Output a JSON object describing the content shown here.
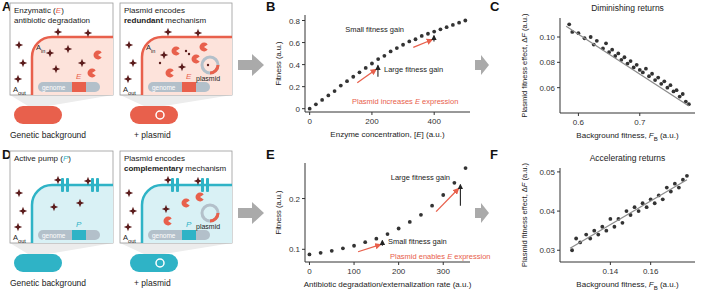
{
  "chart_data": [
    {
      "panel": "B",
      "type": "scatter",
      "marker": "circle",
      "color": "#333333",
      "x": [
        0,
        20,
        40,
        60,
        80,
        100,
        120,
        140,
        160,
        180,
        200,
        220,
        240,
        260,
        280,
        300,
        320,
        340,
        360,
        380,
        400,
        420,
        440,
        460,
        480,
        500
      ],
      "values": [
        0,
        0.04,
        0.08,
        0.12,
        0.16,
        0.21,
        0.25,
        0.29,
        0.33,
        0.37,
        0.41,
        0.45,
        0.48,
        0.52,
        0.55,
        0.58,
        0.61,
        0.63,
        0.66,
        0.68,
        0.7,
        0.72,
        0.74,
        0.76,
        0.78,
        0.8
      ],
      "xlim": [
        -15,
        515
      ],
      "ylim": [
        -0.03,
        0.85
      ],
      "xticks": [
        0,
        200,
        400
      ],
      "yticks": [
        0,
        0.2,
        0.4,
        0.6,
        0.8
      ],
      "xlabel": [
        {
          "text": "Enzyme concentration, ["
        },
        {
          "text": "E",
          "italic": true
        },
        {
          "text": "] (a.u.)"
        }
      ],
      "ylabel": "Fitness (a.u.)",
      "annotations": [
        {
          "text": [
            {
              "text": "Plasmid increases "
            },
            {
              "text": "E",
              "italic": true
            },
            {
              "text": " expression"
            }
          ],
          "color": "#e8604c"
        },
        {
          "text": "Large fitness gain",
          "color": "#222222"
        },
        {
          "text": "Small fitness gain",
          "color": "#222222"
        }
      ]
    },
    {
      "panel": "C",
      "type": "scatter",
      "title": "Diminishing returns",
      "marker": "circle",
      "color": "#333333",
      "x": [
        0.585,
        0.59,
        0.6,
        0.61,
        0.62,
        0.625,
        0.63,
        0.64,
        0.645,
        0.65,
        0.655,
        0.66,
        0.665,
        0.67,
        0.675,
        0.68,
        0.685,
        0.69,
        0.695,
        0.7,
        0.705,
        0.71,
        0.715,
        0.72,
        0.725,
        0.73,
        0.735,
        0.74,
        0.745,
        0.75,
        0.755,
        0.76,
        0.765,
        0.77,
        0.775,
        0.78
      ],
      "values": [
        0.11,
        0.104,
        0.103,
        0.099,
        0.1,
        0.094,
        0.097,
        0.091,
        0.095,
        0.088,
        0.09,
        0.085,
        0.087,
        0.082,
        0.084,
        0.079,
        0.081,
        0.076,
        0.078,
        0.074,
        0.072,
        0.075,
        0.069,
        0.071,
        0.066,
        0.068,
        0.063,
        0.065,
        0.06,
        0.062,
        0.057,
        0.058,
        0.053,
        0.055,
        0.049,
        0.047
      ],
      "fit": {
        "type": "line",
        "x": [
          0.58,
          0.78
        ],
        "values": [
          0.1085,
          0.0455
        ],
        "color": "#8c8c8c",
        "line_style": "solid"
      },
      "xlim": [
        0.57,
        0.79
      ],
      "ylim": [
        0.04,
        0.115
      ],
      "xticks": [
        0.6,
        0.7
      ],
      "yticks": [
        0.06,
        0.08,
        {
          "value": 0.1,
          "label": "0.10"
        }
      ],
      "xlabel": [
        {
          "text": "Background fitness, "
        },
        {
          "text": "F",
          "italic": true
        },
        {
          "text": "B",
          "sub": true
        },
        {
          "text": " (a.u.)"
        }
      ],
      "ylabel": [
        {
          "text": "Plasmid fitness effect, Δ"
        },
        {
          "text": "F",
          "italic": true
        },
        {
          "text": " (a.u.)"
        }
      ]
    },
    {
      "panel": "E",
      "type": "scatter",
      "marker": "circle",
      "color": "#333333",
      "x": [
        0,
        25,
        50,
        75,
        100,
        125,
        150,
        175,
        200,
        225,
        250,
        275,
        300,
        325,
        350
      ],
      "values": [
        0.09,
        0.093,
        0.097,
        0.102,
        0.107,
        0.114,
        0.121,
        0.13,
        0.141,
        0.154,
        0.168,
        0.186,
        0.207,
        0.231,
        0.26
      ],
      "xlim": [
        -10,
        360
      ],
      "ylim": [
        0.075,
        0.27
      ],
      "xticks": [
        0,
        100,
        200,
        300
      ],
      "yticks": [
        0.1,
        0.2
      ],
      "xlabel": "Antibiotic degradation/externalization rate (a.u.)",
      "ylabel": "Fitness (a.u.)",
      "annotations": [
        {
          "text": "Small fitness gain",
          "color": "#222222"
        },
        {
          "text": "Large fitness gain",
          "color": "#222222"
        },
        {
          "text": [
            {
              "text": "Plasmid enables "
            },
            {
              "text": "E",
              "italic": true
            },
            {
              "text": " expression"
            }
          ],
          "color": "#e8604c"
        }
      ]
    },
    {
      "panel": "F",
      "type": "scatter",
      "title": "Accelerating returns",
      "marker": "circle",
      "color": "#333333",
      "x": [
        0.121,
        0.123,
        0.125,
        0.128,
        0.13,
        0.132,
        0.134,
        0.136,
        0.138,
        0.14,
        0.142,
        0.144,
        0.146,
        0.148,
        0.15,
        0.152,
        0.154,
        0.156,
        0.158,
        0.16,
        0.162,
        0.164,
        0.166,
        0.168,
        0.17,
        0.172,
        0.174,
        0.176,
        0.178
      ],
      "values": [
        0.03,
        0.033,
        0.032,
        0.034,
        0.033,
        0.035,
        0.034,
        0.036,
        0.035,
        0.038,
        0.036,
        0.038,
        0.037,
        0.04,
        0.039,
        0.041,
        0.04,
        0.042,
        0.041,
        0.043,
        0.042,
        0.044,
        0.043,
        0.046,
        0.045,
        0.047,
        0.046,
        0.048,
        0.049
      ],
      "fit": {
        "type": "line",
        "x": [
          0.12,
          0.178
        ],
        "values": [
          0.0305,
          0.048
        ],
        "color": "#8c8c8c",
        "line_style": "solid"
      },
      "xlim": [
        0.115,
        0.182
      ],
      "ylim": [
        0.027,
        0.051
      ],
      "xticks": [
        0.14,
        0.16
      ],
      "yticks": [
        0.03,
        0.04,
        0.05
      ],
      "xlabel": [
        {
          "text": "Background fitness, "
        },
        {
          "text": "F",
          "italic": true
        },
        {
          "text": "B",
          "sub": true
        },
        {
          "text": " (a.u.)"
        }
      ],
      "ylabel": [
        {
          "text": "Plasmid fitness effect, Δ"
        },
        {
          "text": "F",
          "italic": true
        },
        {
          "text": " (a.u.)"
        }
      ]
    }
  ],
  "diagrams": [
    {
      "panel": "A",
      "mechanism": "enzyme",
      "color": "#e8604c",
      "fill": "#fde3db",
      "left_title": [
        [
          {
            "text": "Enzymatic ("
          },
          {
            "text": "E",
            "italic": true,
            "color": "#e8604c"
          },
          {
            "text": ")"
          }
        ],
        [
          {
            "text": "antibiotic degradation"
          }
        ]
      ],
      "right_title": [
        [
          {
            "text": "Plasmid encodes"
          }
        ],
        [
          {
            "text": "redundant",
            "bold": true
          },
          {
            "text": " mechanism"
          }
        ]
      ],
      "a_out": [
        {
          "text": "A"
        },
        {
          "text": "out",
          "sub": true
        }
      ],
      "a_in": [
        {
          "text": "A"
        },
        {
          "text": "in",
          "sub": true
        }
      ],
      "genome": "genome",
      "protein": [
        {
          "text": "E",
          "italic": true
        }
      ],
      "plasmid": "plasmid",
      "background": "Genetic background",
      "plus": "+ plasmid"
    },
    {
      "panel": "D",
      "mechanism": "pump",
      "color": "#2fb3c6",
      "fill": "#d9f1f5",
      "left_title": [
        [
          {
            "text": "Active pump ("
          },
          {
            "text": "P",
            "italic": true,
            "color": "#2fb3c6"
          },
          {
            "text": ")"
          }
        ]
      ],
      "right_title": [
        [
          {
            "text": "Plasmid encodes"
          }
        ],
        [
          {
            "text": "complementary",
            "bold": true
          },
          {
            "text": " mechanism"
          }
        ]
      ],
      "a_out": [
        {
          "text": "A"
        },
        {
          "text": "out",
          "sub": true
        }
      ],
      "genome": "genome",
      "protein": [
        {
          "text": "P",
          "italic": true
        }
      ],
      "plasmid": "plasmid",
      "background": "Genetic background",
      "plus": "+ plasmid"
    }
  ]
}
